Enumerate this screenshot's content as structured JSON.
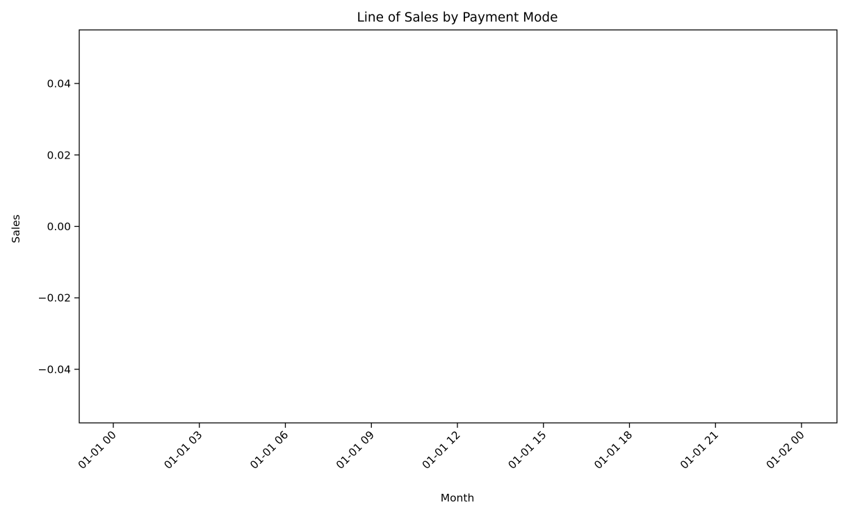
{
  "chart_data": {
    "type": "line",
    "title": "Line of Sales by Payment Mode",
    "xlabel": "Month",
    "ylabel": "Sales",
    "x_ticks": [
      "01-01 00",
      "01-01 03",
      "01-01 06",
      "01-01 09",
      "01-01 12",
      "01-01 15",
      "01-01 18",
      "01-01 21",
      "01-02 00"
    ],
    "y_ticks": [
      0.04,
      0.02,
      0.0,
      -0.02,
      -0.04
    ],
    "y_tick_labels": [
      "0.04",
      "0.02",
      "0.00",
      "−0.02",
      "−0.04"
    ],
    "ylim": [
      -0.055,
      0.055
    ],
    "x_hours_range": [
      0,
      24
    ],
    "series": [],
    "grid": false,
    "colors": {
      "axis": "#000000",
      "background": "#ffffff"
    }
  }
}
